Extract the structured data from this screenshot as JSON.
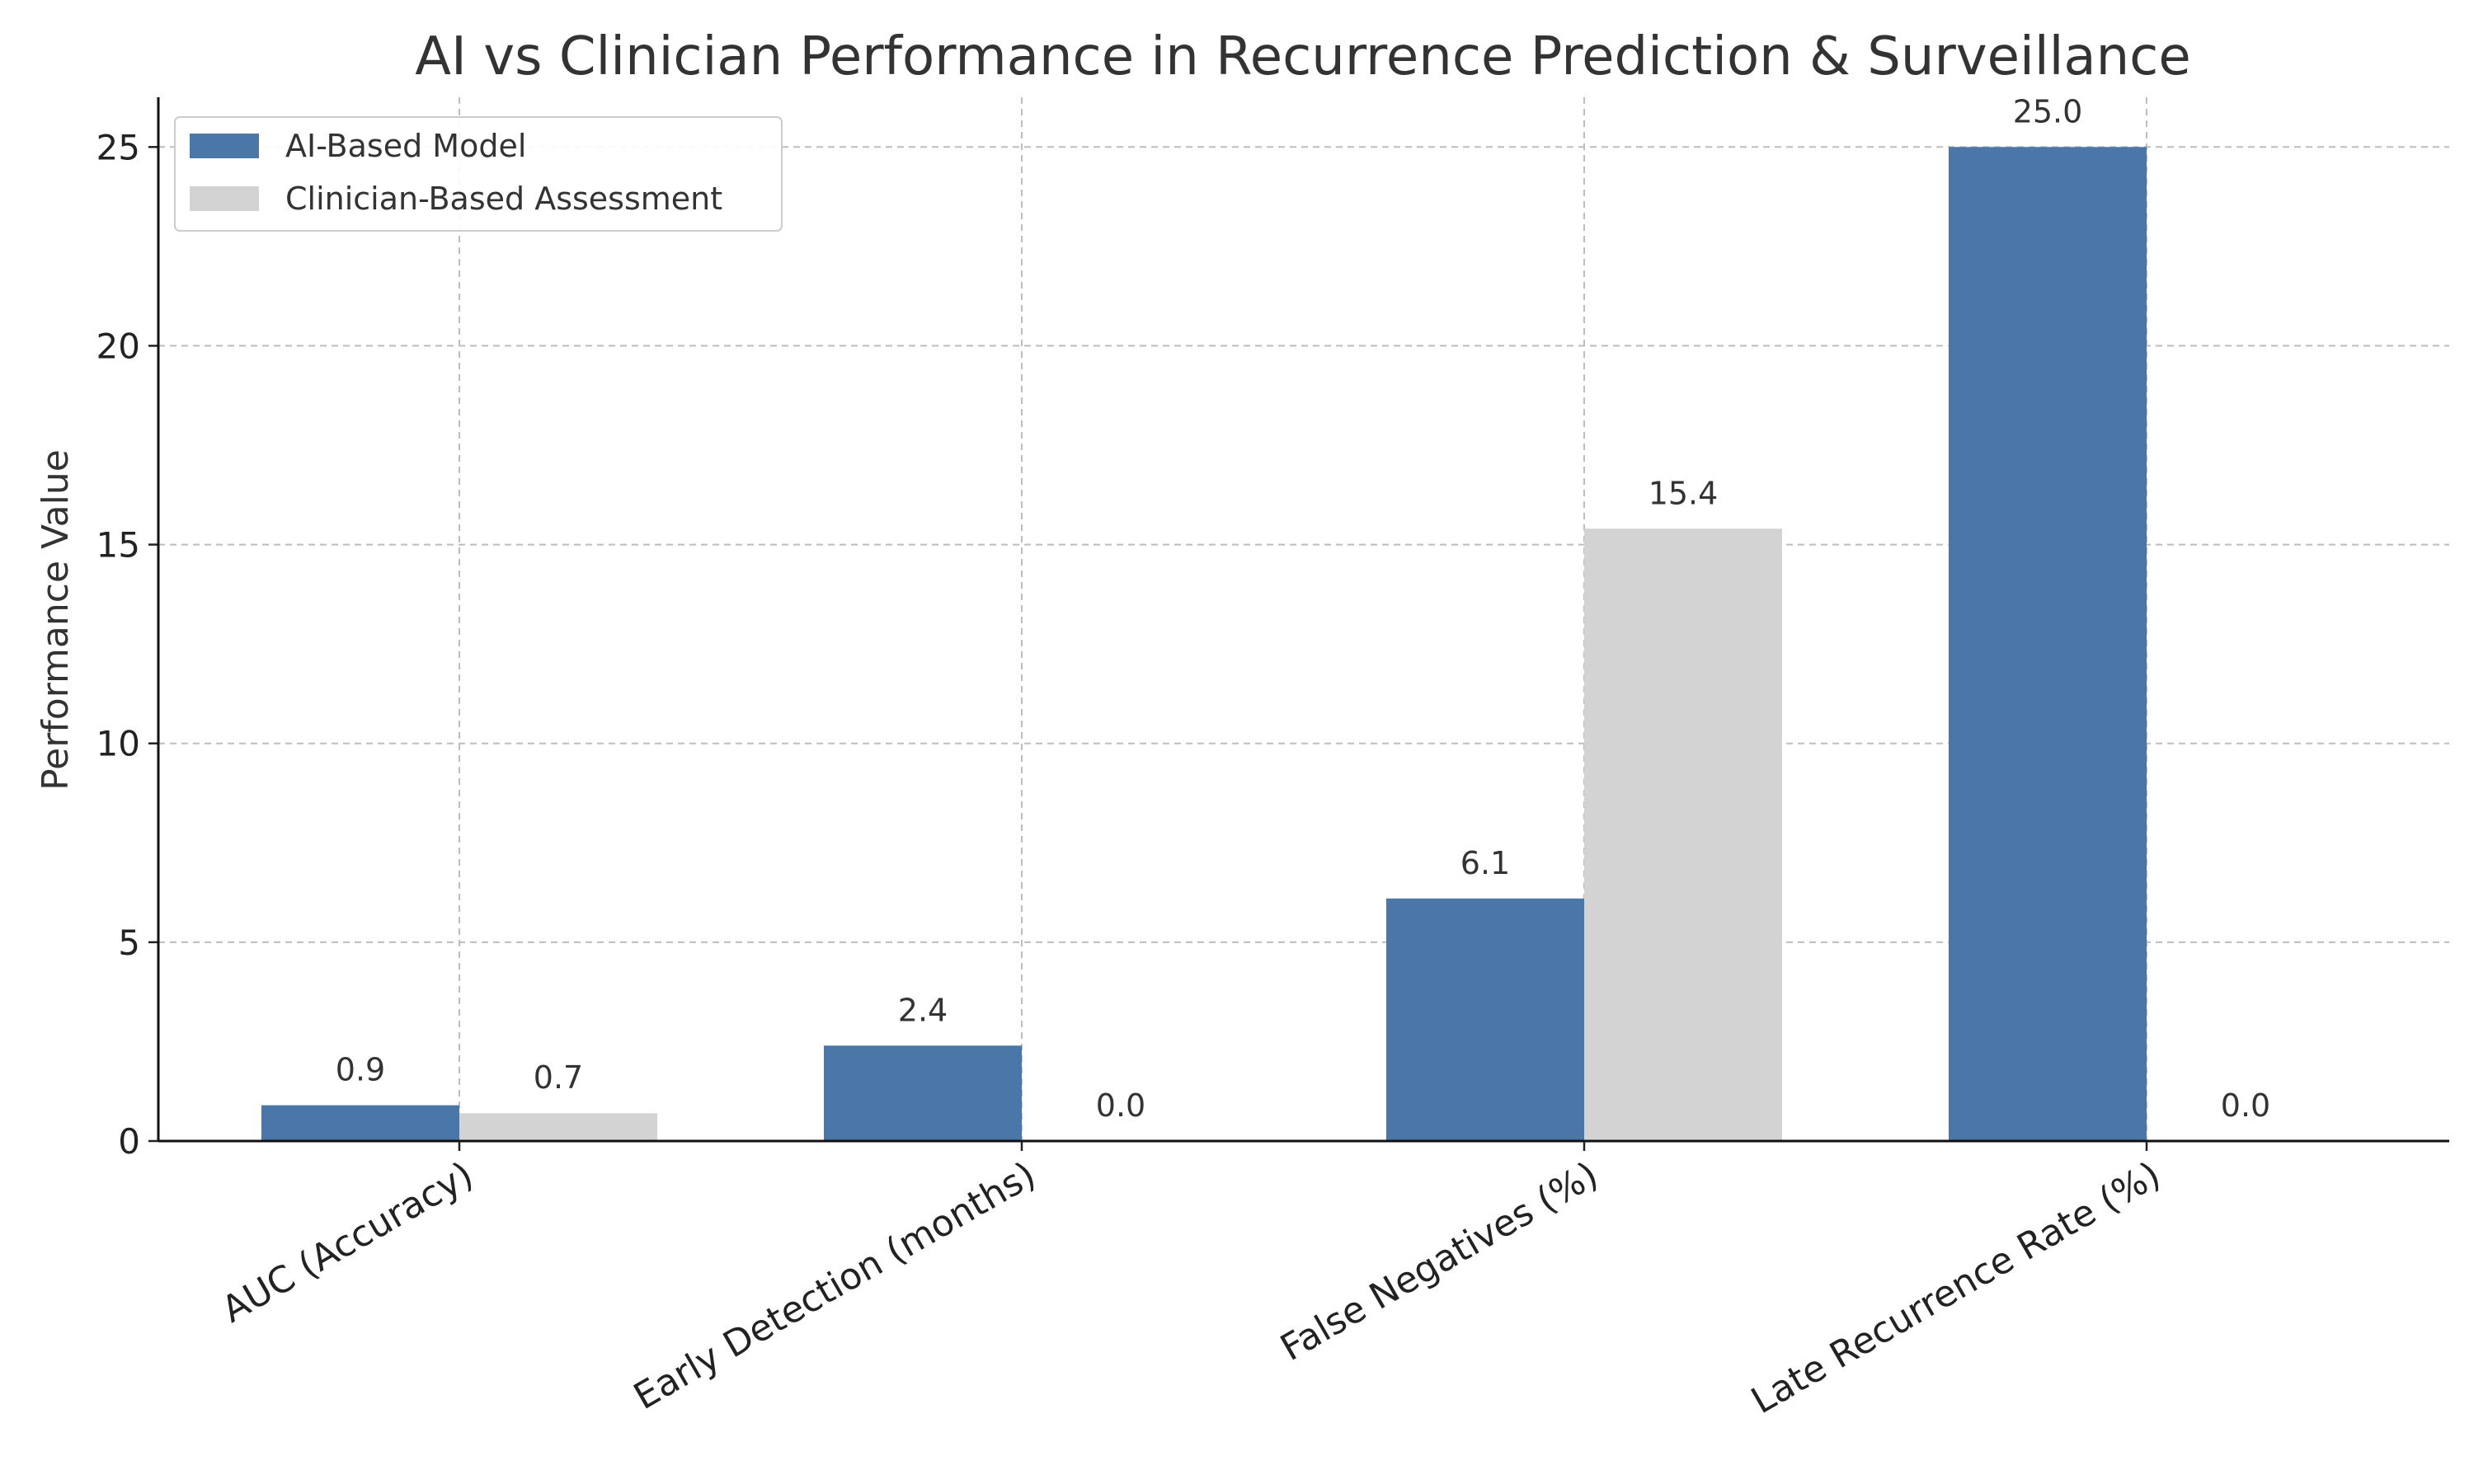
{
  "chart_data": {
    "type": "bar",
    "title": "AI vs Clinician Performance in Recurrence Prediction & Surveillance",
    "xlabel": "",
    "ylabel": "Performance Value",
    "categories": [
      "AUC (Accuracy)",
      "Early Detection (months)",
      "False Negatives (%)",
      "Late Recurrence Rate (%)"
    ],
    "series": [
      {
        "name": "AI-Based Model",
        "values": [
          0.9,
          2.4,
          6.1,
          25.0
        ],
        "labels": [
          "0.9",
          "2.4",
          "6.1",
          "25.0"
        ],
        "color": "#4a76a8"
      },
      {
        "name": "Clinician-Based Assessment",
        "values": [
          0.7,
          0.0,
          15.4,
          0.0
        ],
        "labels": [
          "0.7",
          "0.0",
          "15.4",
          "0.0"
        ],
        "color": "#d3d3d3"
      }
    ],
    "ylim": [
      0,
      26.25
    ],
    "yticks": [
      0,
      5,
      10,
      15,
      20,
      25
    ],
    "grid": true,
    "legend_position": "top-left"
  }
}
